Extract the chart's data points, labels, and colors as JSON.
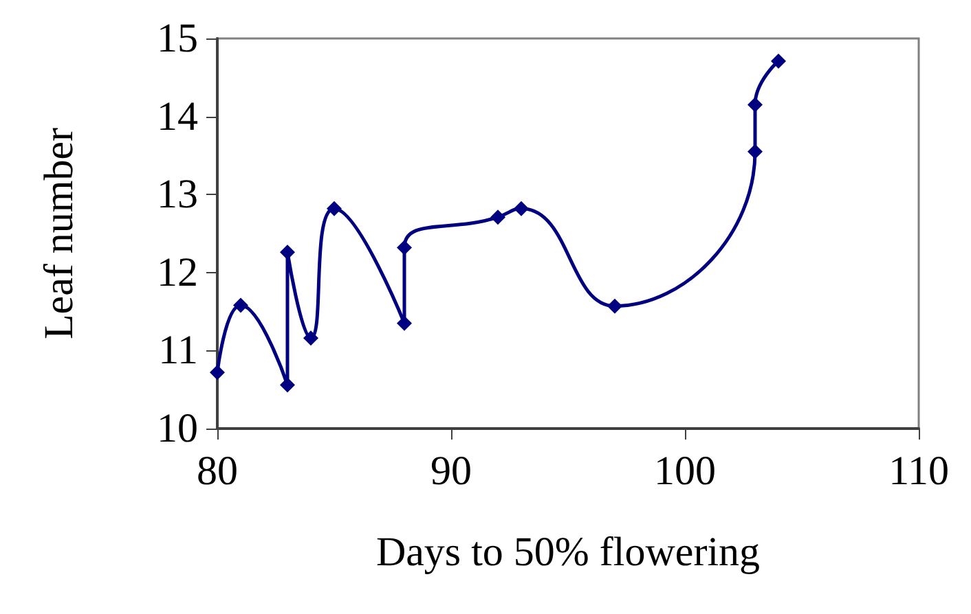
{
  "chart_data": {
    "type": "line",
    "xlabel": "Days to 50% flowering",
    "ylabel": "Leaf number",
    "x": [
      80,
      81,
      83,
      83,
      84,
      85,
      88,
      88,
      92,
      93,
      97,
      103,
      103,
      104
    ],
    "series": [
      {
        "color": "#000080",
        "values": [
          10.72,
          11.58,
          10.56,
          12.26,
          11.16,
          12.82,
          11.35,
          12.32,
          12.71,
          12.82,
          11.57,
          13.55,
          14.15,
          14.71
        ]
      }
    ],
    "xlim": [
      80,
      110
    ],
    "xticks": [
      80,
      90,
      100,
      110
    ],
    "ylim": [
      10,
      15
    ],
    "yticks": [
      10,
      11,
      12,
      13,
      14,
      15
    ],
    "grid": false,
    "marker": "diamond",
    "line_style": "solid"
  }
}
